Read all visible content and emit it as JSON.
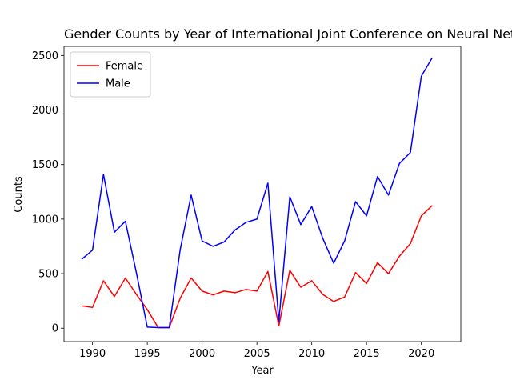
{
  "chart_data": {
    "type": "line",
    "title": "Gender Counts by Year of International Joint Conference on Neural Networks",
    "xlabel": "Year",
    "ylabel": "Counts",
    "xlim": [
      1987.4,
      2023.6
    ],
    "ylim": [
      -123,
      2583
    ],
    "xticks": [
      1990,
      1995,
      2000,
      2005,
      2010,
      2015,
      2020
    ],
    "yticks": [
      0,
      500,
      1000,
      1500,
      2000,
      2500
    ],
    "legend_position": "top-left",
    "x": [
      1989,
      1990,
      1991,
      1992,
      1993,
      1994,
      1995,
      1996,
      1997,
      1998,
      1999,
      2000,
      2001,
      2002,
      2003,
      2004,
      2005,
      2006,
      2007,
      2008,
      2009,
      2010,
      2011,
      2012,
      2013,
      2014,
      2015,
      2016,
      2017,
      2018,
      2019,
      2020,
      2021
    ],
    "series": [
      {
        "name": "Female",
        "color": "#ff0000",
        "values": [
          205,
          190,
          435,
          290,
          460,
          310,
          170,
          5,
          5,
          275,
          460,
          340,
          305,
          340,
          325,
          355,
          340,
          520,
          20,
          530,
          375,
          435,
          310,
          245,
          285,
          510,
          410,
          600,
          500,
          660,
          775,
          1030,
          1125
        ]
      },
      {
        "name": "Male",
        "color": "#0000ff",
        "values": [
          630,
          715,
          1410,
          880,
          980,
          510,
          10,
          5,
          5,
          720,
          1220,
          800,
          750,
          790,
          900,
          970,
          1000,
          1330,
          60,
          1205,
          950,
          1115,
          825,
          595,
          800,
          1160,
          1030,
          1390,
          1220,
          1510,
          1610,
          2310,
          2480
        ]
      }
    ]
  }
}
